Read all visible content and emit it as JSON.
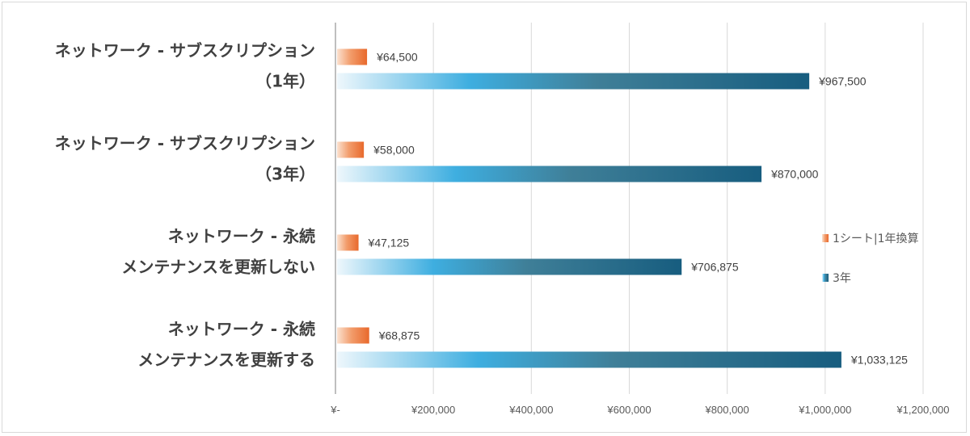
{
  "chart_data": {
    "type": "bar",
    "orientation": "horizontal",
    "categories": [
      [
        "ネットワーク - サブスクリプション",
        "（1年）"
      ],
      [
        "ネットワーク - サブスクリプション",
        "（3年）"
      ],
      [
        "ネットワーク - 永続",
        "メンテナンスを更新しない"
      ],
      [
        "ネットワーク - 永続",
        "メンテナンスを更新する"
      ]
    ],
    "series": [
      {
        "name": "1シート|1年換算",
        "values": [
          64500,
          58000,
          47125,
          68875
        ],
        "color": "#ed7d31"
      },
      {
        "name": "3年",
        "values": [
          967500,
          870000,
          706875,
          1033125
        ],
        "color": "#1f5f7e"
      }
    ],
    "data_labels": [
      [
        "¥64,500",
        "¥967,500"
      ],
      [
        "¥58,000",
        "¥870,000"
      ],
      [
        "¥47,125",
        "¥706,875"
      ],
      [
        "¥68,875",
        "¥1,033,125"
      ]
    ],
    "xlim": [
      0,
      1200000
    ],
    "xticks": [
      0,
      200000,
      400000,
      600000,
      800000,
      1000000,
      1200000
    ],
    "xtick_labels": [
      "¥-",
      "¥200,000",
      "¥400,000",
      "¥600,000",
      "¥800,000",
      "¥1,000,000",
      "¥1,200,000"
    ],
    "grid": "vertical",
    "legend_position": "right",
    "title": "",
    "xlabel": "",
    "ylabel": ""
  }
}
